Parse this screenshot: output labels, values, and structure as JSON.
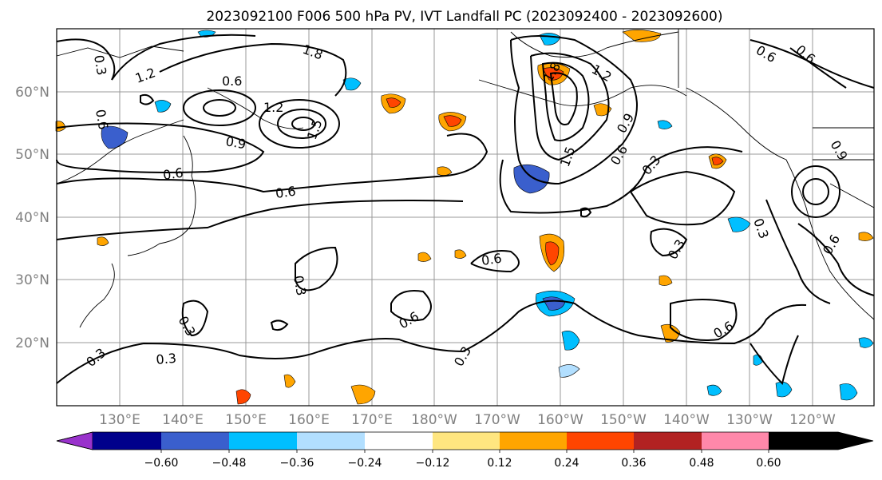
{
  "title": "2023092100 F006 500 hPa PV, IVT Landfall PC (2023092400 - 2023092600)",
  "lat_labels": [
    "60°N",
    "50°N",
    "40°N",
    "30°N",
    "20°N"
  ],
  "lon_labels": [
    "130°E",
    "140°E",
    "150°E",
    "160°E",
    "170°E",
    "180°W",
    "170°W",
    "160°W",
    "150°W",
    "140°W",
    "130°W",
    "120°W"
  ],
  "colorbar": {
    "ticks": [
      "−0.60",
      "−0.48",
      "−0.36",
      "−0.24",
      "−0.12",
      "0.12",
      "0.24",
      "0.36",
      "0.48",
      "0.60"
    ],
    "colors": [
      "#9932cc",
      "#00008b",
      "#3a5fcd",
      "#00bfff",
      "#b2dfff",
      "#ffffff",
      "#ffe680",
      "#ffa500",
      "#ff4500",
      "#b22222",
      "#ff88aa"
    ]
  },
  "contour_labels": [
    "0.3",
    "0.6",
    "0.9",
    "1.2",
    "1.5",
    "1.8"
  ],
  "contour_label_instances": [
    "0.3",
    "1.2",
    "0.6",
    "1.2",
    "1.5",
    "1.8",
    "0.9",
    "0.6",
    "0.6",
    "0.3",
    "0.3",
    "0.3",
    "0.6",
    "0.6",
    "0.3",
    "0.3",
    "0.6",
    "0.6",
    "1.8",
    "1.2",
    "0.9",
    "1.5",
    "0.6",
    "0.3",
    "0.9",
    "0.3",
    "0.3",
    "0.6",
    "0.6",
    "0.6"
  ]
}
